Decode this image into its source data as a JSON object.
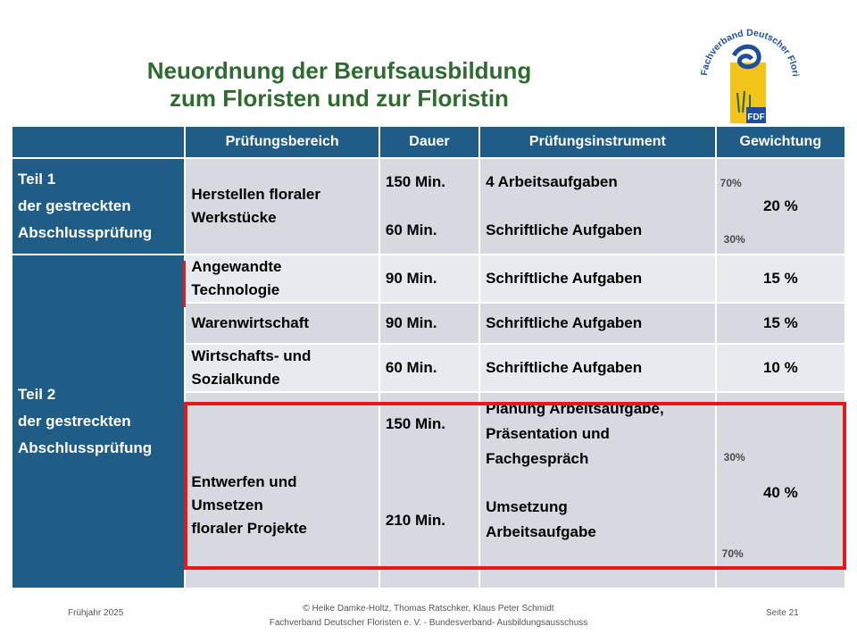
{
  "title": {
    "line1": "Neuordnung der Berufsausbildung",
    "line2": "zum Floristen und zur Floristin"
  },
  "logo": {
    "arc_text": "Fachverband Deutscher Floristen e.V.",
    "badge": "FDF"
  },
  "table": {
    "headers": [
      "",
      "Prüfungsbereich",
      "Dauer",
      "Prüfungsinstrument",
      "Gewichtung"
    ],
    "teil1": {
      "l1": "Teil 1",
      "l2": "der gestreckten",
      "l3": "Abschlussprüfung"
    },
    "teil2": {
      "l1": "Teil 2",
      "l2": "der gestreckten",
      "l3": "Abschlussprüfung"
    },
    "rows": [
      {
        "bereich": "Herstellen floraler Werkstücke",
        "dauer1": "150 Min.",
        "dauer2": "60 Min.",
        "instr1": "4 Arbeitsaufgaben",
        "instr2": "Schriftliche Aufgaben",
        "sub1": "70%",
        "sub2": "30%",
        "gew": "20 %"
      },
      {
        "bereich": "Angewandte Technologie",
        "dauer": "90 Min.",
        "instr": "Schriftliche Aufgaben",
        "gew": "15 %"
      },
      {
        "bereich": "Warenwirtschaft",
        "dauer": "90 Min.",
        "instr": "Schriftliche Aufgaben",
        "gew": "15 %"
      },
      {
        "bereich": "Wirtschafts- und Sozialkunde",
        "dauer": "60 Min.",
        "instr": "Schriftliche Aufgaben",
        "gew": "10 %"
      },
      {
        "bereich_l1": "Entwerfen und",
        "bereich_l2": "Umsetzen",
        "bereich_l3": "floraler Projekte",
        "dauer1": "150 Min.",
        "dauer2": "210 Min.",
        "instr1_l1": "Planung Arbeitsaufgabe,",
        "instr1_l2": "Präsentation und",
        "instr1_l3": "Fachgespräch",
        "instr2_l1": "Umsetzung",
        "instr2_l2": "Arbeitsaufgabe",
        "sub1": "30%",
        "sub2": "70%",
        "gew": "40 %"
      }
    ]
  },
  "footer": {
    "left": "Frühjahr 2025",
    "center1": "© Heike Damke-Holtz, Thomas Ratschker, Klaus Peter Schmidt",
    "center2": "Fachverband Deutscher Floristen e. V. - Bundesverband- Ausbildungsausschuss",
    "right": "Seite 21"
  }
}
